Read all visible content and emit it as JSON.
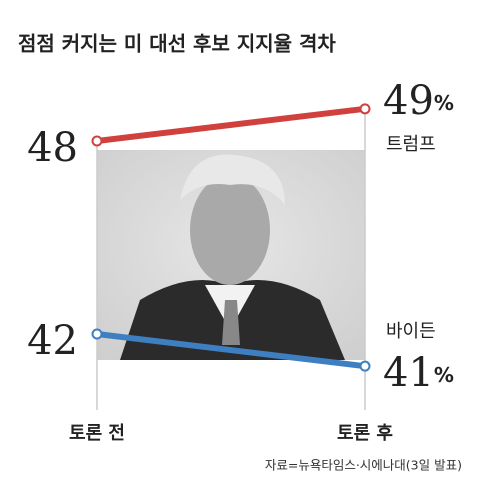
{
  "chart_data": {
    "type": "slope",
    "title": "점점 커지는 미 대선 후보 지지율 격차",
    "categories": [
      "토론 전",
      "토론 후"
    ],
    "series": [
      {
        "name": "트럼프",
        "color": "#d0413d",
        "values": [
          48,
          49
        ],
        "value_labels": [
          "48",
          "49%"
        ]
      },
      {
        "name": "바이든",
        "color": "#3d7fc1",
        "values": [
          42,
          41
        ],
        "value_labels": [
          "42",
          "41%"
        ]
      }
    ],
    "ylim": [
      39,
      51
    ],
    "source": "자료=뉴욕타임스·시에나대(3일 발표)"
  }
}
